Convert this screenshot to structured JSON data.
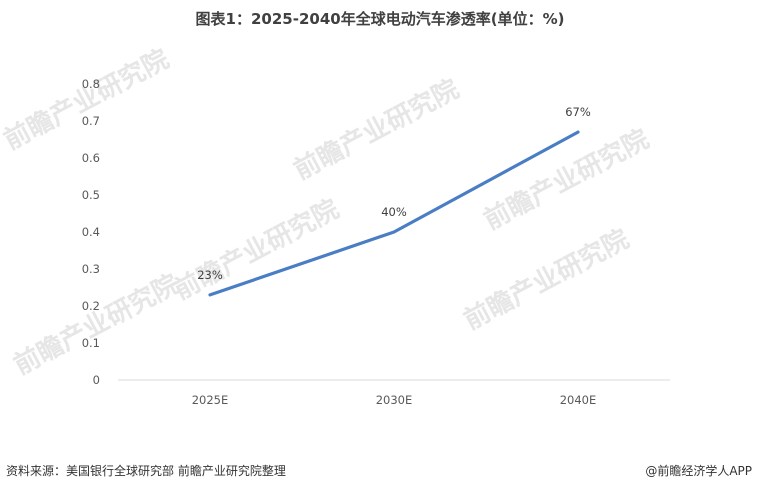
{
  "title": "图表1：2025-2040年全球电动汽车渗透率(单位：%)",
  "watermark": "前瞻产业研究院",
  "footer": {
    "source": "资料来源：美国银行全球研究部 前瞻产业研究院整理",
    "brand": "@前瞻经济学人APP"
  },
  "colors": {
    "line": "#4a7ec4",
    "axis": "#d9d9d9",
    "watermark": "#e6e6e6"
  },
  "chart_data": {
    "type": "line",
    "title": "图表1：2025-2040年全球电动汽车渗透率(单位：%)",
    "categories": [
      "2025E",
      "2030E",
      "2040E"
    ],
    "values": [
      0.23,
      0.4,
      0.67
    ],
    "data_labels": [
      "23%",
      "40%",
      "67%"
    ],
    "y_ticks": [
      "0",
      "0.1",
      "0.2",
      "0.3",
      "0.4",
      "0.5",
      "0.6",
      "0.7",
      "0.8"
    ],
    "ylim": [
      0,
      0.8
    ],
    "grid": false,
    "legend": "none"
  }
}
